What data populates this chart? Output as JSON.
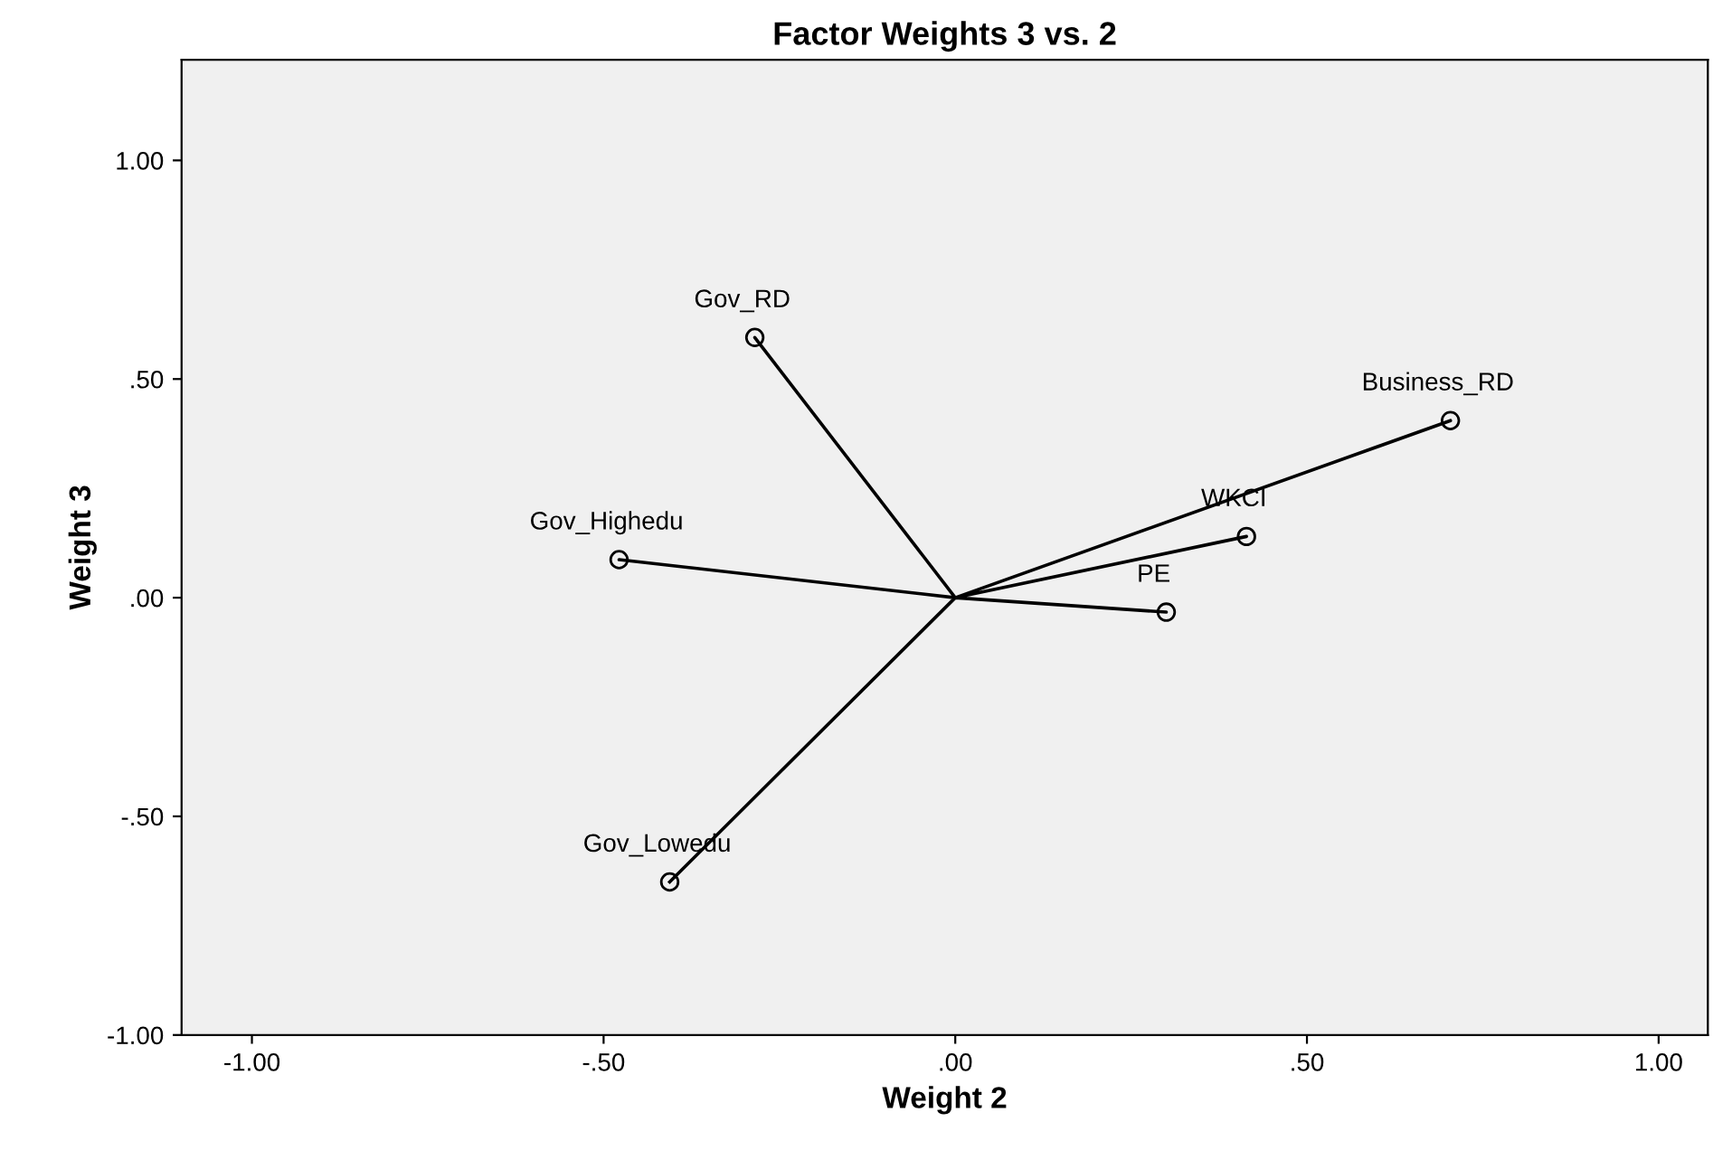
{
  "chart_data": {
    "type": "scatter",
    "title": "Factor Weights 3 vs. 2",
    "xlabel": "Weight 2",
    "ylabel": "Weight 3",
    "xlim": [
      -1.1,
      1.07
    ],
    "ylim": [
      -1.0,
      1.23
    ],
    "xticks": [
      {
        "value": -1.0,
        "label": "-1.00"
      },
      {
        "value": -0.5,
        "label": "-.50"
      },
      {
        "value": 0,
        "label": ".00"
      },
      {
        "value": 0.5,
        "label": ".50"
      },
      {
        "value": 1.0,
        "label": "1.00"
      }
    ],
    "yticks": [
      {
        "value": -1.0,
        "label": "-1.00"
      },
      {
        "value": -0.5,
        "label": "-.50"
      },
      {
        "value": 0,
        "label": ".00"
      },
      {
        "value": 0.5,
        "label": ".50"
      },
      {
        "value": 1.0,
        "label": "1.00"
      }
    ],
    "grid": false,
    "legend": false,
    "marker": "circle",
    "series": [
      {
        "type": "line",
        "marker": "none",
        "color": "#000000",
        "x": [
          0,
          -0.285,
          0,
          0.704,
          0,
          0.414,
          0,
          0.3,
          0,
          -0.478,
          0,
          -0.406
        ],
        "values": [
          0,
          0.595,
          0,
          0.405,
          0,
          0.14,
          0,
          -0.033,
          0,
          0.087,
          0,
          -0.65
        ]
      },
      {
        "color": "#000000",
        "x": [
          -0.285,
          0.704,
          0.414,
          0.3,
          -0.478,
          -0.406
        ],
        "values": [
          0.595,
          0.405,
          0.14,
          -0.033,
          0.087,
          -0.65
        ]
      }
    ],
    "annotations": [
      {
        "text": "Gov_RD",
        "x": -0.285,
        "y": 0.595
      },
      {
        "text": "Business_RD",
        "x": 0.704,
        "y": 0.405
      },
      {
        "text": "WKCI",
        "x": 0.414,
        "y": 0.14
      },
      {
        "text": "PE",
        "x": 0.3,
        "y": -0.033
      },
      {
        "text": "Gov_Highedu",
        "x": -0.478,
        "y": 0.087
      },
      {
        "text": "Gov_Lowedu",
        "x": -0.406,
        "y": -0.65
      }
    ]
  }
}
